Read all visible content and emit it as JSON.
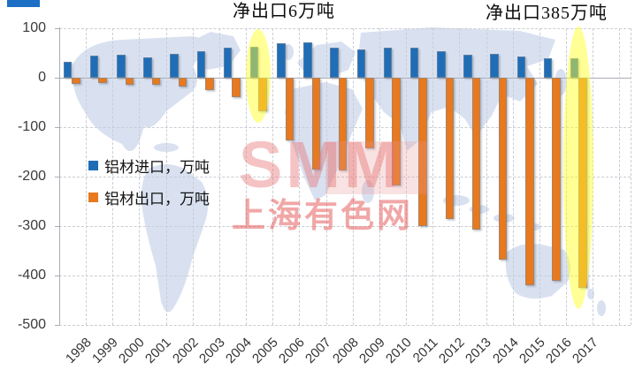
{
  "decoration": {
    "top_left_fragment_color": "#1c6fc4"
  },
  "watermark": {
    "line1": "SMM",
    "line2": "上海有色网"
  },
  "chart_data": {
    "type": "bar",
    "title": "",
    "categories": [
      "1998",
      "1999",
      "2000",
      "2001",
      "2002",
      "2003",
      "2004",
      "2005",
      "2006",
      "2007",
      "2008",
      "2009",
      "2010",
      "2011",
      "2012",
      "2013",
      "2014",
      "2015",
      "2016",
      "2017"
    ],
    "series": [
      {
        "name": "铝材进口，万吨",
        "color": "#1f6db6",
        "values": [
          33,
          45,
          47,
          41,
          48,
          53,
          60,
          62,
          69,
          71,
          61,
          58,
          60,
          61,
          53,
          46,
          49,
          43,
          39,
          40
        ]
      },
      {
        "name": "铝材出口，万吨",
        "color": "#e8791e",
        "values": [
          -12,
          -10,
          -14,
          -15,
          -18,
          -25,
          -40,
          -68,
          -127,
          -185,
          -188,
          -143,
          -217,
          -300,
          -286,
          -307,
          -367,
          -420,
          -410,
          -425
        ]
      }
    ],
    "xlabel": "",
    "ylabel": "",
    "ylim": [
      -500,
      100
    ],
    "yticks": [
      100,
      0,
      -100,
      -200,
      -300,
      -400,
      -500
    ],
    "grid": "dashed-horizontal-and-vertical",
    "legend_position": "inside-left",
    "annotations": [
      {
        "text": "净出口6万吨",
        "year": "2005"
      },
      {
        "text": "净出口385万吨",
        "year": "2017"
      }
    ],
    "highlights": [
      {
        "year": "2005",
        "color": "rgba(255,255,45,0.5)"
      },
      {
        "year": "2017",
        "color": "rgba(255,255,45,0.5)"
      }
    ]
  }
}
